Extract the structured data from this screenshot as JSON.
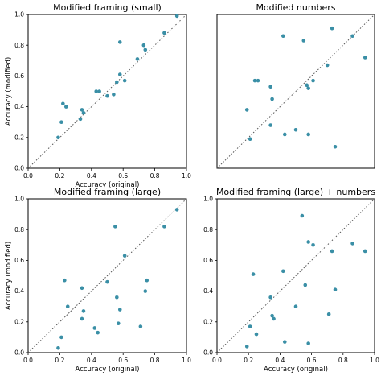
{
  "chart_data": [
    {
      "type": "scatter",
      "title": "Modified framing (small)",
      "xlabel": "Accuracy (original)",
      "ylabel": "Accuracy (modified)",
      "xlim": [
        0,
        1
      ],
      "ylim": [
        0,
        1
      ],
      "ticks": [
        "0.0",
        "0.2",
        "0.4",
        "0.6",
        "0.8",
        "1.0"
      ],
      "diagonal": true,
      "marker_color": "#3a8fa6",
      "points": [
        [
          0.19,
          0.2
        ],
        [
          0.21,
          0.3
        ],
        [
          0.22,
          0.42
        ],
        [
          0.24,
          0.4
        ],
        [
          0.33,
          0.32
        ],
        [
          0.34,
          0.38
        ],
        [
          0.35,
          0.36
        ],
        [
          0.43,
          0.5
        ],
        [
          0.45,
          0.5
        ],
        [
          0.5,
          0.47
        ],
        [
          0.54,
          0.48
        ],
        [
          0.56,
          0.56
        ],
        [
          0.58,
          0.61
        ],
        [
          0.58,
          0.82
        ],
        [
          0.61,
          0.57
        ],
        [
          0.69,
          0.71
        ],
        [
          0.73,
          0.8
        ],
        [
          0.74,
          0.77
        ],
        [
          0.86,
          0.88
        ],
        [
          0.94,
          0.99
        ]
      ]
    },
    {
      "type": "scatter",
      "title": "Modified numbers",
      "xlabel": "",
      "ylabel": "",
      "xlim": [
        0,
        1
      ],
      "ylim": [
        0,
        1
      ],
      "ticks": [],
      "diagonal": true,
      "marker_color": "#3a8fa6",
      "points": [
        [
          0.19,
          0.38
        ],
        [
          0.21,
          0.19
        ],
        [
          0.24,
          0.57
        ],
        [
          0.26,
          0.57
        ],
        [
          0.34,
          0.53
        ],
        [
          0.35,
          0.45
        ],
        [
          0.34,
          0.28
        ],
        [
          0.42,
          0.86
        ],
        [
          0.43,
          0.22
        ],
        [
          0.5,
          0.25
        ],
        [
          0.55,
          0.83
        ],
        [
          0.57,
          0.54
        ],
        [
          0.58,
          0.52
        ],
        [
          0.58,
          0.22
        ],
        [
          0.61,
          0.57
        ],
        [
          0.7,
          0.67
        ],
        [
          0.73,
          0.91
        ],
        [
          0.75,
          0.14
        ],
        [
          0.86,
          0.86
        ],
        [
          0.94,
          0.72
        ]
      ]
    },
    {
      "type": "scatter",
      "title": "Modified framing (large)",
      "xlabel": "Accuracy (original)",
      "ylabel": "Accuracy (modified)",
      "xlim": [
        0,
        1
      ],
      "ylim": [
        0,
        1
      ],
      "ticks": [
        "0.0",
        "0.2",
        "0.4",
        "0.6",
        "0.8",
        "1.0"
      ],
      "diagonal": true,
      "marker_color": "#3a8fa6",
      "points": [
        [
          0.19,
          0.03
        ],
        [
          0.21,
          0.1
        ],
        [
          0.23,
          0.47
        ],
        [
          0.25,
          0.3
        ],
        [
          0.34,
          0.42
        ],
        [
          0.34,
          0.22
        ],
        [
          0.35,
          0.27
        ],
        [
          0.42,
          0.16
        ],
        [
          0.44,
          0.13
        ],
        [
          0.5,
          0.46
        ],
        [
          0.55,
          0.82
        ],
        [
          0.56,
          0.36
        ],
        [
          0.57,
          0.19
        ],
        [
          0.58,
          0.28
        ],
        [
          0.61,
          0.63
        ],
        [
          0.71,
          0.17
        ],
        [
          0.74,
          0.4
        ],
        [
          0.75,
          0.47
        ],
        [
          0.86,
          0.82
        ],
        [
          0.94,
          0.93
        ]
      ]
    },
    {
      "type": "scatter",
      "title": "Modified framing (large) + numbers",
      "xlabel": "Accuracy (original)",
      "ylabel": "",
      "xlim": [
        0,
        1
      ],
      "ylim": [
        0,
        1
      ],
      "ticks": [
        "0.0",
        "0.2",
        "0.4",
        "0.6",
        "0.8",
        "1.0"
      ],
      "diagonal": true,
      "marker_color": "#3a8fa6",
      "points": [
        [
          0.19,
          0.04
        ],
        [
          0.21,
          0.17
        ],
        [
          0.23,
          0.51
        ],
        [
          0.25,
          0.12
        ],
        [
          0.34,
          0.36
        ],
        [
          0.35,
          0.24
        ],
        [
          0.36,
          0.22
        ],
        [
          0.42,
          0.53
        ],
        [
          0.43,
          0.07
        ],
        [
          0.5,
          0.3
        ],
        [
          0.54,
          0.89
        ],
        [
          0.56,
          0.44
        ],
        [
          0.58,
          0.72
        ],
        [
          0.58,
          0.06
        ],
        [
          0.61,
          0.7
        ],
        [
          0.71,
          0.25
        ],
        [
          0.73,
          0.66
        ],
        [
          0.75,
          0.41
        ],
        [
          0.86,
          0.71
        ],
        [
          0.94,
          0.66
        ]
      ]
    }
  ]
}
